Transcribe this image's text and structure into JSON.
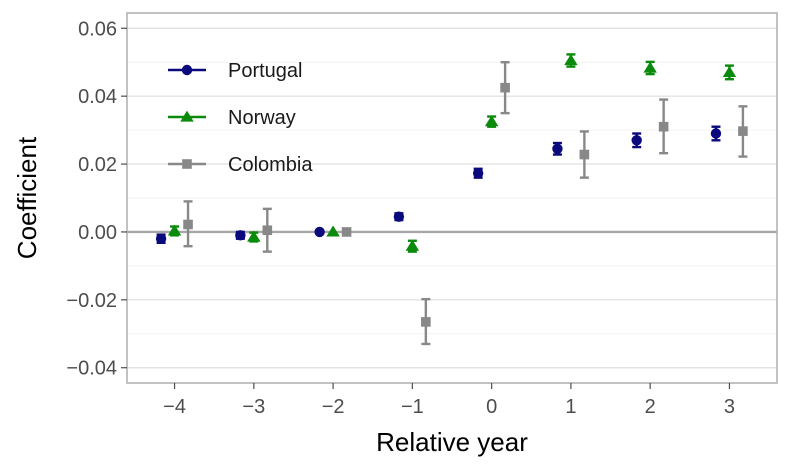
{
  "chart_data": {
    "type": "scatter",
    "title": "",
    "xlabel": "Relative year",
    "ylabel": "Coefficient",
    "xlim": [
      -4.6,
      3.6
    ],
    "ylim": [
      -0.0445,
      0.0645
    ],
    "x_ticks": [
      -4,
      -3,
      -2,
      -1,
      0,
      1,
      2,
      3
    ],
    "x_tick_labels": [
      "−4",
      "−3",
      "−2",
      "−1",
      "0",
      "1",
      "2",
      "3"
    ],
    "y_ticks": [
      -0.04,
      -0.02,
      0.0,
      0.02,
      0.04,
      0.06
    ],
    "y_tick_labels": [
      "−0.04",
      "−0.02",
      "0.00",
      "0.02",
      "0.04",
      "0.06"
    ],
    "grid": true,
    "reference_line_y": 0,
    "legend_position": "top-left",
    "series": [
      {
        "name": "Portugal",
        "marker": "circle",
        "color": "#0a0a7d",
        "x_offset": -0.17,
        "points": [
          {
            "x": -4,
            "y": -0.002,
            "lo": -0.0032,
            "hi": -0.0008
          },
          {
            "x": -3,
            "y": -0.001,
            "lo": -0.002,
            "hi": 0.0
          },
          {
            "x": -2,
            "y": 0.0,
            "lo": 0.0,
            "hi": 0.0
          },
          {
            "x": -1,
            "y": 0.0045,
            "lo": 0.0035,
            "hi": 0.0055
          },
          {
            "x": 0,
            "y": 0.0173,
            "lo": 0.016,
            "hi": 0.0186
          },
          {
            "x": 1,
            "y": 0.0245,
            "lo": 0.0228,
            "hi": 0.0262
          },
          {
            "x": 2,
            "y": 0.027,
            "lo": 0.025,
            "hi": 0.029
          },
          {
            "x": 3,
            "y": 0.029,
            "lo": 0.027,
            "hi": 0.031
          }
        ]
      },
      {
        "name": "Norway",
        "marker": "triangle",
        "color": "#0a8a0a",
        "x_offset": 0.0,
        "points": [
          {
            "x": -4,
            "y": 0.0003,
            "lo": -0.001,
            "hi": 0.0016
          },
          {
            "x": -3,
            "y": -0.0015,
            "lo": -0.0028,
            "hi": -0.0002
          },
          {
            "x": -2,
            "y": 0.0,
            "lo": 0.0,
            "hi": 0.0
          },
          {
            "x": -1,
            "y": -0.0042,
            "lo": -0.0058,
            "hi": -0.0026
          },
          {
            "x": 0,
            "y": 0.0325,
            "lo": 0.031,
            "hi": 0.034
          },
          {
            "x": 1,
            "y": 0.0505,
            "lo": 0.0487,
            "hi": 0.0523
          },
          {
            "x": 2,
            "y": 0.0483,
            "lo": 0.0465,
            "hi": 0.0501
          },
          {
            "x": 3,
            "y": 0.047,
            "lo": 0.045,
            "hi": 0.049
          }
        ]
      },
      {
        "name": "Colombia",
        "marker": "square",
        "color": "#888888",
        "x_offset": 0.17,
        "points": [
          {
            "x": -4,
            "y": 0.0022,
            "lo": -0.0042,
            "hi": 0.009
          },
          {
            "x": -3,
            "y": 0.0005,
            "lo": -0.0058,
            "hi": 0.0068
          },
          {
            "x": -2,
            "y": 0.0,
            "lo": 0.0,
            "hi": 0.0
          },
          {
            "x": -1,
            "y": -0.0265,
            "lo": -0.033,
            "hi": -0.0198
          },
          {
            "x": 0,
            "y": 0.0425,
            "lo": 0.035,
            "hi": 0.05
          },
          {
            "x": 1,
            "y": 0.0228,
            "lo": 0.016,
            "hi": 0.0296
          },
          {
            "x": 2,
            "y": 0.031,
            "lo": 0.0232,
            "hi": 0.039
          },
          {
            "x": 3,
            "y": 0.0297,
            "lo": 0.0222,
            "hi": 0.037
          }
        ]
      }
    ]
  }
}
